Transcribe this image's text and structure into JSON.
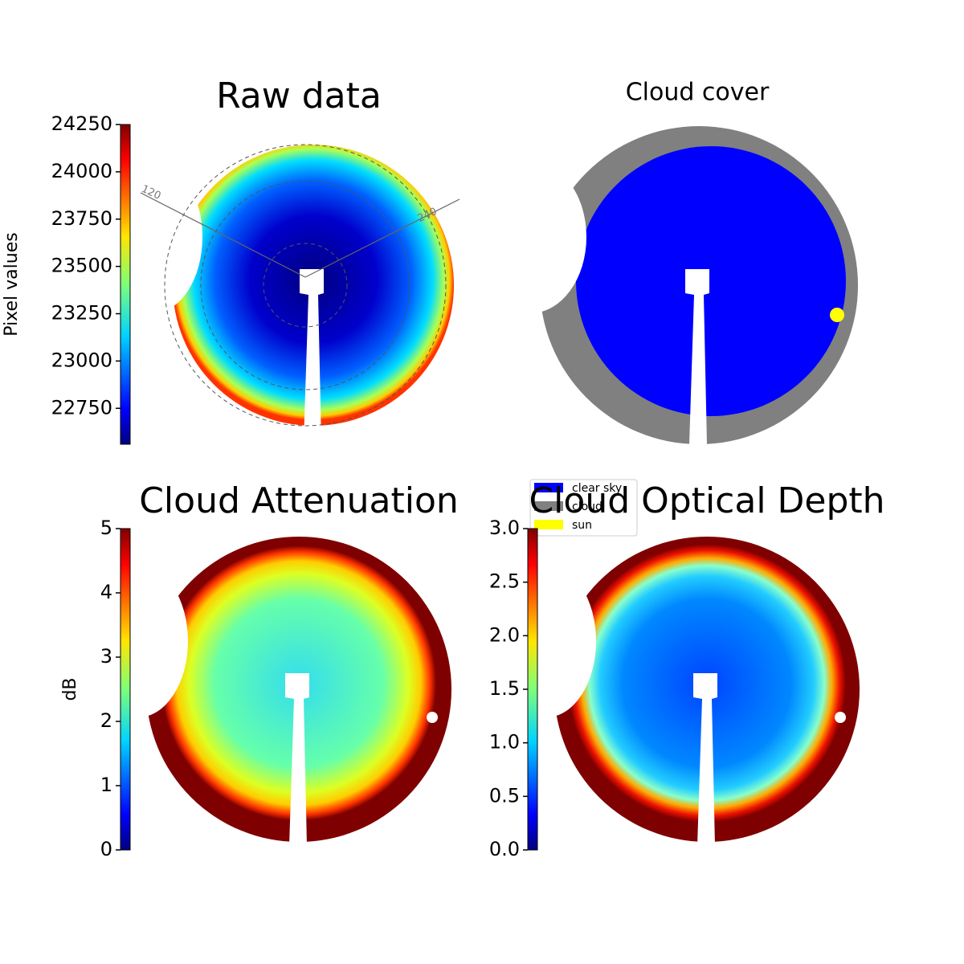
{
  "chart_data": [
    {
      "type": "image",
      "title": "Raw data",
      "colormap": "jet",
      "colorbar": {
        "label": "Pixel values",
        "lim": [
          22560,
          24250
        ],
        "ticks": [
          22750,
          23000,
          23250,
          23500,
          23750,
          24000,
          24250
        ]
      },
      "annotations": [
        "120",
        "240"
      ]
    },
    {
      "type": "categorical_image",
      "title": "Cloud cover",
      "series": [
        {
          "name": "clear sky",
          "color": "#0000ff"
        },
        {
          "name": "cloud",
          "color": "#808080"
        },
        {
          "name": "sun",
          "color": "#ffff00"
        }
      ]
    },
    {
      "type": "image",
      "title": "Cloud Attenuation",
      "colormap": "jet",
      "colorbar": {
        "label": "dB",
        "lim": [
          0,
          5
        ],
        "ticks": [
          0,
          1,
          2,
          3,
          4,
          5
        ]
      }
    },
    {
      "type": "image",
      "title": "Cloud Optical Depth",
      "colormap": "jet",
      "colorbar": {
        "label": "",
        "lim": [
          0,
          3
        ],
        "ticks": [
          {
            "value": 0,
            "label": "0.0"
          },
          {
            "value": 0.5,
            "label": "0.5"
          },
          {
            "value": 1,
            "label": "1.0"
          },
          {
            "value": 1.5,
            "label": "1.5"
          },
          {
            "value": 2,
            "label": "2.0"
          },
          {
            "value": 2.5,
            "label": "2.5"
          },
          {
            "value": 3,
            "label": "3.0"
          }
        ]
      }
    }
  ]
}
